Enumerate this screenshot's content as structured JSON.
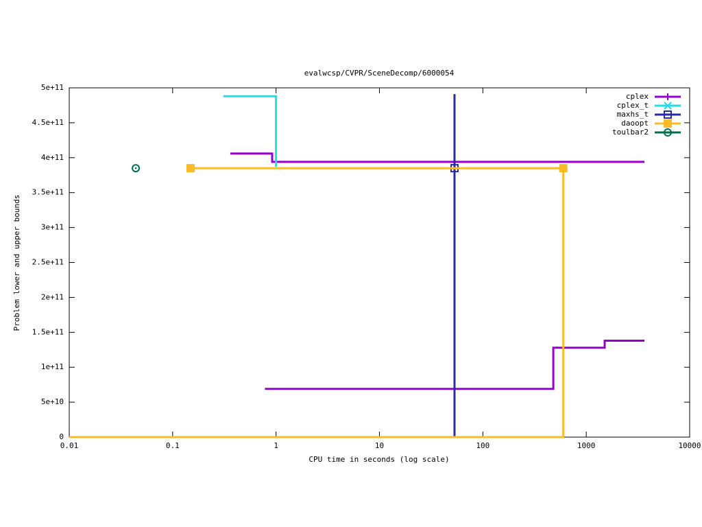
{
  "chart_data": {
    "type": "line",
    "title": "evalwcsp/CVPR/SceneDecomp/6000054",
    "x_label": "CPU time in seconds (log scale)",
    "y_label": "Problem lower and upper bounds",
    "xlog": true,
    "xlim": [
      0.01,
      10000
    ],
    "xticks": [
      0.01,
      0.1,
      1,
      10,
      100,
      1000,
      10000
    ],
    "ylim": [
      0,
      500000000000
    ],
    "yticks": [
      0,
      {
        "value": 50000000000,
        "label": "5e+10"
      },
      {
        "value": 100000000000,
        "label": "1e+11"
      },
      {
        "value": 150000000000,
        "label": "1.5e+11"
      },
      {
        "value": 200000000000,
        "label": "2e+11"
      },
      {
        "value": 250000000000,
        "label": "2.5e+11"
      },
      {
        "value": 300000000000,
        "label": "3e+11"
      },
      {
        "value": 350000000000,
        "label": "3.5e+11"
      },
      {
        "value": 400000000000,
        "label": "4e+11"
      },
      {
        "value": 450000000000,
        "label": "4.5e+11"
      },
      {
        "value": 500000000000,
        "label": "5e+11"
      }
    ],
    "legend": "top-right",
    "series": [
      {
        "name": "cplex",
        "color": "#9400d3",
        "marker": "plus",
        "x": [
          0.361,
          0.917,
          0.917,
          3656,
          null,
          0.78,
          480,
          480,
          1507,
          1507,
          3656
        ],
        "values": [
          406000000000,
          406000000000,
          394000000000,
          394000000000,
          null,
          69000000000,
          69000000000,
          128000000000,
          128000000000,
          138000000000,
          138000000000
        ],
        "points_x": [],
        "points": []
      },
      {
        "name": "cplex_t",
        "color": "#22dde6",
        "marker": "cross",
        "x": [
          0.31,
          1.0,
          1.0
        ],
        "values": [
          488000000000,
          488000000000,
          387000000000
        ],
        "points_x": [],
        "points": []
      },
      {
        "name": "maxhs_t",
        "color": "#2a2aaa",
        "marker": "square-open",
        "x": [
          53.2,
          53.2
        ],
        "values": [
          491000000000,
          0
        ],
        "points_x": [
          53.2
        ],
        "points": [
          385000000000
        ]
      },
      {
        "name": "daoopt",
        "color": "#fbbb26",
        "marker": "square",
        "x": [
          0.149,
          600,
          600,
          0.01
        ],
        "values": [
          385000000000,
          385000000000,
          0,
          0
        ],
        "points_x": [
          0.149,
          600
        ],
        "points": [
          385000000000,
          385000000000
        ]
      },
      {
        "name": "toulbar2",
        "color": "#00704a",
        "marker": "circle-dot",
        "x": [],
        "values": [],
        "points_x": [
          0.044
        ],
        "points": [
          385000000000
        ]
      }
    ]
  }
}
